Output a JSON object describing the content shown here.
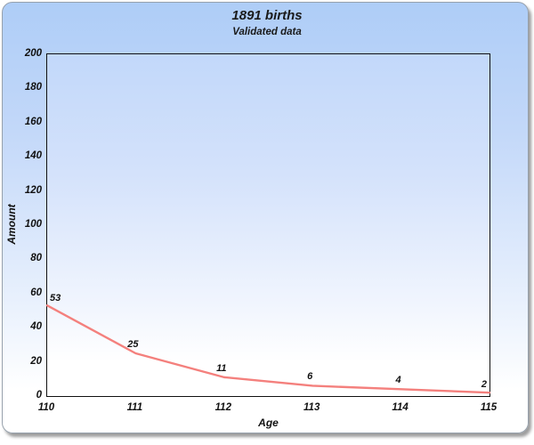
{
  "chart_data": {
    "type": "line",
    "title": "1891 births",
    "subtitle": "Validated data",
    "xlabel": "Age",
    "ylabel": "Amount",
    "x": [
      110,
      111,
      112,
      113,
      114,
      115
    ],
    "values": [
      53,
      25,
      11,
      6,
      4,
      2
    ],
    "data_labels": [
      "53",
      "25",
      "11",
      "6",
      "4",
      "2"
    ],
    "xticks": [
      "110",
      "111",
      "112",
      "113",
      "114",
      "115"
    ],
    "yticks": [
      0,
      20,
      40,
      60,
      80,
      100,
      120,
      140,
      160,
      180,
      200
    ],
    "xlim": [
      110,
      115
    ],
    "ylim": [
      0,
      200
    ],
    "grid": false,
    "legend": "none",
    "colors": {
      "line": "#f4807d",
      "card_background_top": "#aecdf7",
      "card_background_bottom": "#ffffff",
      "plot_background_top": "#c2d8fa",
      "plot_background_bottom": "#ffffff",
      "card_border": "#97a1ac",
      "plot_border": "#111111",
      "text": "#1a1a1a"
    }
  }
}
